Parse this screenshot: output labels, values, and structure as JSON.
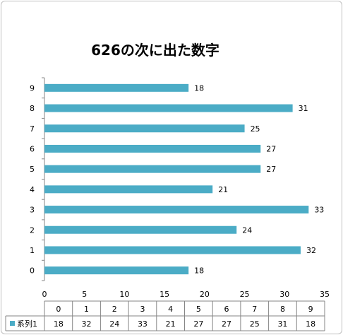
{
  "chart_data": {
    "type": "bar",
    "orientation": "horizontal",
    "title": "626の次に出た数字",
    "xlabel": "",
    "ylabel": "",
    "categories": [
      "0",
      "1",
      "2",
      "3",
      "4",
      "5",
      "6",
      "7",
      "8",
      "9"
    ],
    "series": [
      {
        "name": "系列1",
        "color": "#4bacc6",
        "values": [
          18,
          32,
          24,
          33,
          21,
          27,
          27,
          25,
          31,
          18
        ]
      }
    ],
    "xlim": [
      0,
      35
    ],
    "x_ticks": [
      0,
      5,
      10,
      15,
      20,
      25,
      30,
      35
    ],
    "data_labels": true,
    "grid": false,
    "data_table": true
  }
}
